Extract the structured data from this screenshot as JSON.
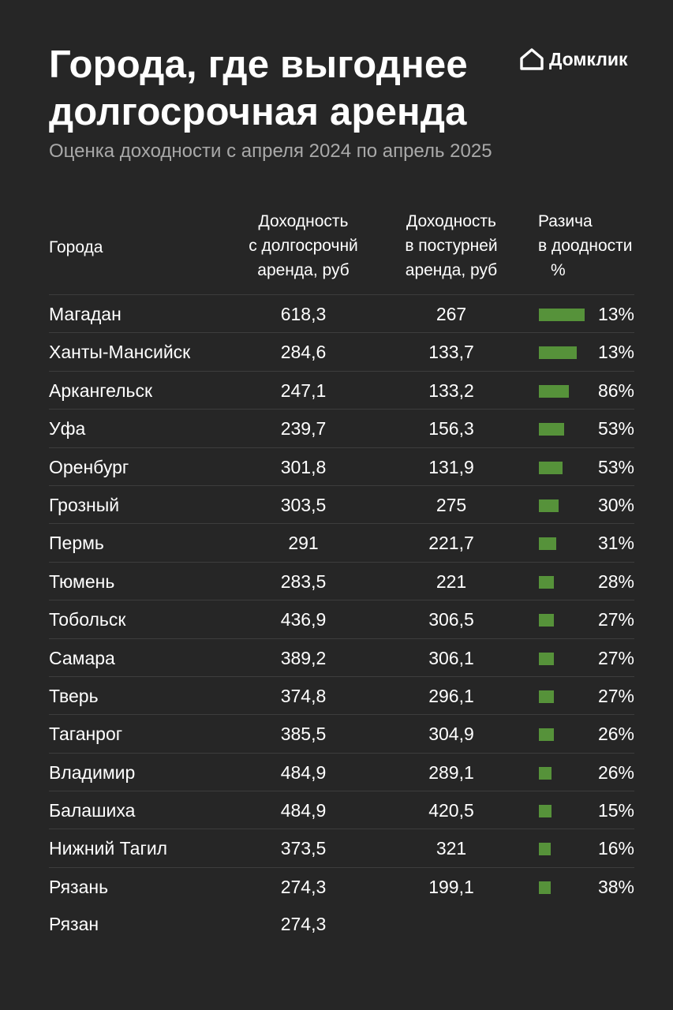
{
  "chart_data": {
    "type": "table",
    "title": "Города, где выгоднее долгосрочная аренда",
    "subtitle": "Оценка доходности с апреля 2024 по апрель 2025",
    "columns": {
      "city": "Города",
      "long_line1": "Доходность",
      "long_line2": "с долгосрочнй",
      "long_line3": "аренда, руб",
      "short_line1": "Доходность",
      "short_line2": "в постурней",
      "short_line3": "аренда, руб",
      "diff_line1": "Разича",
      "diff_line2": "в доодности",
      "diff_line3": "%"
    },
    "bar_color": "#56923a",
    "rows": [
      {
        "city": "Магадан",
        "long": "618,3",
        "short": "267",
        "diff": "13%",
        "bar_level": 1.0
      },
      {
        "city": "Ханты-Мансийск",
        "long": "284,6",
        "short": "133,7",
        "diff": "13%",
        "bar_level": 0.83
      },
      {
        "city": "Аркангельск",
        "long": "247,1",
        "short": "133,2",
        "diff": "86%",
        "bar_level": 0.66
      },
      {
        "city": "Уфа",
        "long": "239,7",
        "short": "156,3",
        "diff": "53%",
        "bar_level": 0.55
      },
      {
        "city": "Оренбург",
        "long": "301,8",
        "short": "131,9",
        "diff": "53%",
        "bar_level": 0.52
      },
      {
        "city": "Грозный",
        "long": "303,5",
        "short": "275",
        "diff": "30%",
        "bar_level": 0.43
      },
      {
        "city": "Пермь",
        "long": "291",
        "short": "221,7",
        "diff": "31%",
        "bar_level": 0.38
      },
      {
        "city": "Тюмень",
        "long": "283,5",
        "short": "221",
        "diff": "28%",
        "bar_level": 0.33
      },
      {
        "city": "Тобольск",
        "long": "436,9",
        "short": "306,5",
        "diff": "27%",
        "bar_level": 0.33
      },
      {
        "city": "Самара",
        "long": "389,2",
        "short": "306,1",
        "diff": "27%",
        "bar_level": 0.33
      },
      {
        "city": "Тверь",
        "long": "374,8",
        "short": "296,1",
        "diff": "27%",
        "bar_level": 0.33
      },
      {
        "city": "Таганрог",
        "long": "385,5",
        "short": "304,9",
        "diff": "26%",
        "bar_level": 0.33
      },
      {
        "city": "Владимир",
        "long": "484,9",
        "short": "289,1",
        "diff": "26%",
        "bar_level": 0.28
      },
      {
        "city": "Балашиха",
        "long": "484,9",
        "short": "420,5",
        "diff": "15%",
        "bar_level": 0.28
      },
      {
        "city": "Нижний Тагил",
        "long": "373,5",
        "short": "321",
        "diff": "16%",
        "bar_level": 0.26
      },
      {
        "city": "Рязань",
        "long": "274,3",
        "short": "199,1",
        "diff": "38%",
        "bar_level": 0.26
      },
      {
        "city": "Рязан",
        "long": "274,3",
        "short": "",
        "diff": "",
        "bar_level": 0
      }
    ]
  },
  "logo": {
    "text": "Домклик",
    "icon": "house-icon"
  }
}
